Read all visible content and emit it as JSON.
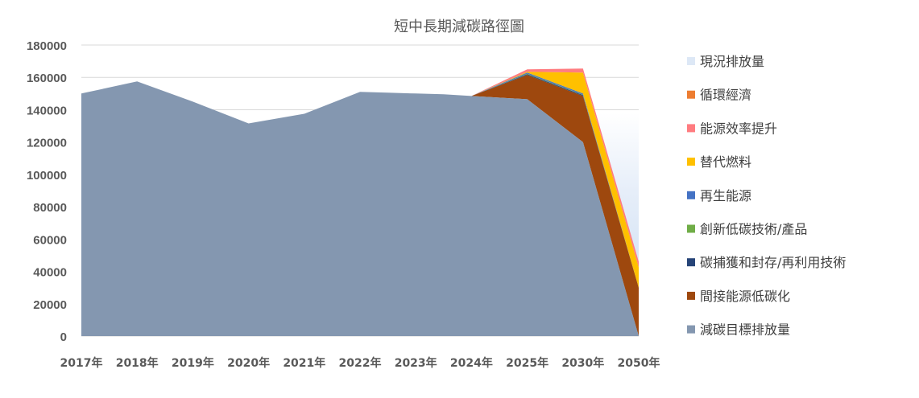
{
  "chart_data": {
    "type": "area",
    "title": "短中長期減碳路徑圖",
    "xlabel": "",
    "ylabel": "",
    "categories": [
      "2017年",
      "2018年",
      "2019年",
      "2020年",
      "2021年",
      "2022年",
      "2023年",
      "2024年",
      "2025年",
      "2030年",
      "2050年"
    ],
    "ylim": [
      0,
      180000
    ],
    "yticks": [
      0,
      20000,
      40000,
      60000,
      80000,
      100000,
      120000,
      140000,
      160000,
      180000
    ],
    "grid": true,
    "legend_position": "right",
    "extra_points": {
      "note_x_positions": [
        "2022年",
        "2022年+",
        "2023年",
        "2023年+",
        "2024年"
      ],
      "target_values": [
        151000,
        150500,
        150000,
        149500,
        148500
      ]
    },
    "series": [
      {
        "name": "現況排放量",
        "color": "#dde8f6",
        "values": [
          null,
          null,
          null,
          null,
          null,
          null,
          null,
          null,
          164000,
          138000,
          138000
        ]
      },
      {
        "name": "減碳目標排放量",
        "color": "#8497b0",
        "values": [
          150000,
          157500,
          145000,
          131500,
          137500,
          151000,
          150000,
          148500,
          146500,
          120000,
          0
        ]
      },
      {
        "name": "間接能源低碳化",
        "color": "#9e480e",
        "values": [
          null,
          null,
          null,
          null,
          null,
          null,
          null,
          0,
          15000,
          28500,
          30000
        ]
      },
      {
        "name": "碳捕獲和封存/再利用技術",
        "color": "#264478",
        "values": [
          null,
          null,
          null,
          null,
          null,
          null,
          null,
          0,
          500,
          500,
          0
        ]
      },
      {
        "name": "創新低碳技術/產品",
        "color": "#70ad47",
        "values": [
          null,
          null,
          null,
          null,
          null,
          null,
          null,
          0,
          300,
          300,
          0
        ]
      },
      {
        "name": "再生能源",
        "color": "#4472c4",
        "values": [
          null,
          null,
          null,
          null,
          null,
          null,
          null,
          0,
          700,
          700,
          0
        ]
      },
      {
        "name": "替代燃料",
        "color": "#ffc000",
        "values": [
          null,
          null,
          null,
          null,
          null,
          null,
          null,
          0,
          500,
          13000,
          12500
        ]
      },
      {
        "name": "能源效率提升",
        "color": "#ff7c80",
        "values": [
          null,
          null,
          null,
          null,
          null,
          null,
          null,
          0,
          1500,
          2500,
          3500
        ]
      },
      {
        "name": "循環經濟",
        "color": "#ed7d31",
        "values": [
          null,
          null,
          null,
          null,
          null,
          null,
          null,
          0,
          0,
          0,
          0
        ]
      }
    ]
  },
  "legend": [
    {
      "label": "現況排放量",
      "color": "#dde8f6"
    },
    {
      "label": "循環經濟",
      "color": "#ed7d31"
    },
    {
      "label": "能源效率提升",
      "color": "#ff7c80"
    },
    {
      "label": "替代燃料",
      "color": "#ffc000"
    },
    {
      "label": "再生能源",
      "color": "#4472c4"
    },
    {
      "label": "創新低碳技術/產品",
      "color": "#70ad47"
    },
    {
      "label": "碳捕獲和封存/再利用技術",
      "color": "#264478"
    },
    {
      "label": "間接能源低碳化",
      "color": "#9e480e"
    },
    {
      "label": "減碳目標排放量",
      "color": "#8497b0"
    }
  ]
}
